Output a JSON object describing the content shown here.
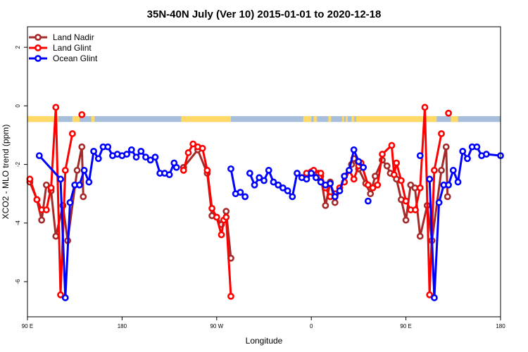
{
  "chart_data": {
    "type": "line",
    "title": "35N-40N July (Ver 10)   2015-01-01 to 2020-12-18",
    "xlabel": "Longitude",
    "ylabel": "XCO2 - MLO trend (ppm)",
    "xlim": [
      0,
      100
    ],
    "ylim": [
      -7.2,
      2.7
    ],
    "x_ticks": [
      {
        "value": 0,
        "label": "90 E"
      },
      {
        "value": 20,
        "label": "180"
      },
      {
        "value": 40,
        "label": "90 W"
      },
      {
        "value": 60,
        "label": "0"
      },
      {
        "value": 80,
        "label": "90 E"
      },
      {
        "value": 100,
        "label": "180"
      }
    ],
    "y_ticks": [
      {
        "value": 2,
        "label": "2"
      },
      {
        "value": 0,
        "label": "0"
      },
      {
        "value": -2,
        "label": "-2"
      },
      {
        "value": -4,
        "label": "-4"
      },
      {
        "value": -6,
        "label": "-6"
      }
    ],
    "grid": false,
    "legend_position": "top-left",
    "land_mask": {
      "y_top": -0.35,
      "y_bottom": -0.55,
      "land_color": "#ffd966",
      "ocean_color": "#a8bfdc",
      "land_ranges": [
        [
          0,
          6.5
        ],
        [
          9.5,
          11
        ],
        [
          13.5,
          14.2
        ],
        [
          32.5,
          43
        ],
        [
          58.3,
          60
        ],
        [
          60.5,
          61.2
        ],
        [
          63.6,
          64.2
        ],
        [
          66.5,
          66.9
        ],
        [
          67.3,
          67.7
        ],
        [
          68.5,
          69.1
        ],
        [
          69.5,
          86.5
        ],
        [
          89.5,
          91
        ]
      ]
    },
    "series": [
      {
        "name": "Land Nadir",
        "color": "#a52a2a",
        "segments": [
          [
            [
              0.5,
              -2.6
            ],
            [
              2,
              -3.2
            ],
            [
              3,
              -3.9
            ],
            [
              4,
              -2.7
            ],
            [
              5,
              -2.9
            ],
            [
              6,
              -4.45
            ],
            [
              7.5,
              -3.4
            ],
            [
              8.5,
              -4.6
            ],
            [
              10.5,
              -2.2
            ],
            [
              11.5,
              -1.4
            ],
            [
              11.8,
              -3.1
            ]
          ],
          [
            [
              33,
              -2.1
            ],
            [
              36,
              -1.5
            ],
            [
              38,
              -2.3
            ],
            [
              39,
              -3.75
            ],
            [
              40,
              -3.8
            ],
            [
              41,
              -4.05
            ],
            [
              42,
              -3.6
            ],
            [
              43,
              -5.2
            ]
          ],
          [
            [
              59,
              -2.4
            ],
            [
              60,
              -2.3
            ],
            [
              61.5,
              -2.3
            ],
            [
              62,
              -2.4
            ],
            [
              63,
              -3.4
            ],
            [
              64,
              -2.6
            ],
            [
              65,
              -3.3
            ],
            [
              67,
              -2.4
            ],
            [
              68.5,
              -2
            ],
            [
              69,
              -1.8
            ],
            [
              70,
              -2.15
            ],
            [
              71.5,
              -2.65
            ],
            [
              72.5,
              -3
            ],
            [
              73.5,
              -2.4
            ],
            [
              75,
              -1.85
            ],
            [
              76,
              -2.05
            ],
            [
              76.7,
              -2.3
            ],
            [
              78,
              -2.5
            ],
            [
              79,
              -3.2
            ],
            [
              80,
              -3.9
            ],
            [
              81,
              -2.7
            ],
            [
              81.9,
              -2.8
            ],
            [
              83,
              -4.45
            ],
            [
              84.5,
              -3.4
            ],
            [
              85.5,
              -4.6
            ],
            [
              87.5,
              -2.2
            ],
            [
              88.5,
              -1.4
            ],
            [
              88.8,
              -3.1
            ]
          ]
        ]
      },
      {
        "name": "Land Glint",
        "color": "#ff0000",
        "segments": [
          [
            [
              0.5,
              -2.5
            ],
            [
              2,
              -3.2
            ],
            [
              3,
              -3.55
            ],
            [
              4,
              -3.55
            ],
            [
              5,
              -2.8
            ],
            [
              6,
              -0.05
            ],
            [
              7,
              -6.45
            ],
            [
              8,
              -2.2
            ],
            [
              9.5,
              -0.95
            ]
          ],
          [
            [
              11.5,
              -0.3
            ]
          ],
          [
            [
              33,
              -2.2
            ],
            [
              34,
              -1.6
            ],
            [
              35,
              -1.3
            ],
            [
              36,
              -1.4
            ],
            [
              37,
              -1.45
            ],
            [
              38,
              -2.2
            ],
            [
              39,
              -3.5
            ],
            [
              40,
              -3.8
            ],
            [
              41,
              -4.4
            ],
            [
              41.5,
              -3.9
            ],
            [
              42,
              -3.8
            ],
            [
              43,
              -6.5
            ]
          ],
          [
            [
              59,
              -2.3
            ],
            [
              60,
              -2.25
            ],
            [
              60.5,
              -2.2
            ],
            [
              62,
              -2.3
            ],
            [
              63,
              -2.8
            ],
            [
              64,
              -3.1
            ],
            [
              65,
              -3
            ],
            [
              66,
              -2.8
            ],
            [
              67,
              -2.6
            ],
            [
              68,
              -2.2
            ],
            [
              69,
              -2.5
            ],
            [
              70,
              -2.05
            ],
            [
              70.5,
              -1.95
            ],
            [
              72,
              -2.7
            ],
            [
              73,
              -2.8
            ],
            [
              74,
              -2.7
            ],
            [
              75,
              -1.65
            ],
            [
              77,
              -1.35
            ],
            [
              77.5,
              -2.35
            ],
            [
              78,
              -1.95
            ],
            [
              79,
              -2.55
            ],
            [
              80,
              -3.25
            ],
            [
              81,
              -3.55
            ],
            [
              82,
              -3.55
            ],
            [
              83,
              -2.8
            ],
            [
              84,
              -0.05
            ],
            [
              85,
              -6.45
            ],
            [
              86,
              -2.2
            ],
            [
              87.5,
              -0.95
            ]
          ],
          [
            [
              89,
              -0.25
            ]
          ]
        ]
      },
      {
        "name": "Ocean Glint",
        "color": "#0000ff",
        "segments": [
          [
            [
              2.5,
              -1.7
            ],
            [
              7,
              -2.5
            ],
            [
              8,
              -6.55
            ],
            [
              9,
              -3.3
            ],
            [
              10,
              -2.7
            ],
            [
              11,
              -2.7
            ],
            [
              12,
              -2.2
            ],
            [
              13,
              -2.6
            ],
            [
              14,
              -1.55
            ],
            [
              15,
              -1.8
            ],
            [
              16,
              -1.4
            ],
            [
              17,
              -1.4
            ],
            [
              18,
              -1.7
            ],
            [
              19,
              -1.65
            ],
            [
              20,
              -1.7
            ],
            [
              21,
              -1.65
            ],
            [
              22,
              -1.5
            ],
            [
              23,
              -1.75
            ],
            [
              24,
              -1.55
            ],
            [
              25,
              -1.75
            ],
            [
              26,
              -1.85
            ],
            [
              27,
              -1.75
            ],
            [
              28,
              -2.3
            ],
            [
              29,
              -2.3
            ],
            [
              30,
              -2.35
            ],
            [
              31,
              -1.95
            ],
            [
              31.5,
              -2.1
            ]
          ],
          [
            [
              43,
              -2.15
            ],
            [
              44,
              -3
            ],
            [
              45,
              -2.95
            ],
            [
              46,
              -3.1
            ]
          ],
          [
            [
              47,
              -2.3
            ],
            [
              48,
              -2.7
            ],
            [
              49,
              -2.45
            ],
            [
              50,
              -2.55
            ],
            [
              51,
              -2.2
            ],
            [
              52,
              -2.6
            ],
            [
              53,
              -2.7
            ],
            [
              54,
              -2.8
            ],
            [
              55,
              -2.9
            ],
            [
              56,
              -3.1
            ],
            [
              57,
              -2.3
            ],
            [
              58,
              -2.45
            ],
            [
              59,
              -2.5
            ],
            [
              60,
              -2.3
            ],
            [
              61,
              -2.45
            ],
            [
              62,
              -2.6
            ],
            [
              63,
              -2.7
            ],
            [
              64,
              -2.65
            ],
            [
              65,
              -3.1
            ],
            [
              66,
              -2.9
            ],
            [
              67,
              -2.4
            ],
            [
              68,
              -2.2
            ],
            [
              69,
              -1.5
            ],
            [
              70,
              -1.9
            ],
            [
              71,
              -2.1
            ]
          ],
          [
            [
              72,
              -3.25
            ]
          ],
          [
            [
              83,
              -1.7
            ]
          ],
          [
            [
              85,
              -2.5
            ],
            [
              86,
              -6.55
            ],
            [
              87,
              -3.3
            ],
            [
              88,
              -2.7
            ],
            [
              89,
              -2.7
            ],
            [
              90,
              -2.2
            ],
            [
              91,
              -2.6
            ],
            [
              92,
              -1.55
            ],
            [
              93,
              -1.8
            ],
            [
              94,
              -1.4
            ],
            [
              95,
              -1.4
            ],
            [
              96,
              -1.7
            ],
            [
              97,
              -1.65
            ],
            [
              100,
              -1.7
            ]
          ]
        ]
      }
    ]
  }
}
